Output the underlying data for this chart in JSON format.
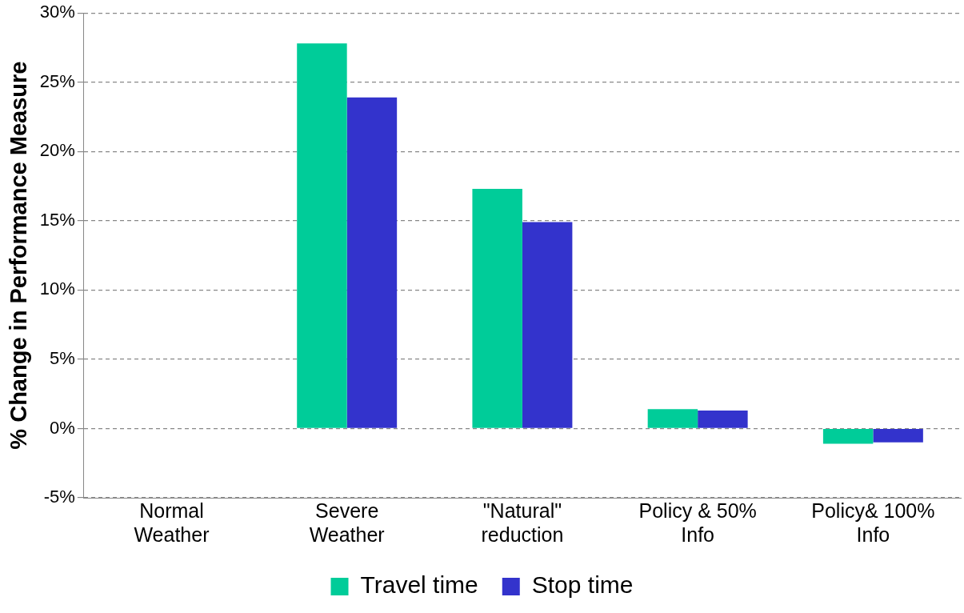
{
  "chart_data": {
    "type": "bar",
    "ylabel": "% Change in Performance Measure",
    "categories": [
      "Normal\nWeather",
      "Severe\nWeather",
      "\"Natural\"\nreduction",
      "Policy & 50%\nInfo",
      "Policy& 100%\nInfo"
    ],
    "series": [
      {
        "name": "Travel time",
        "color": "#00cc99",
        "values": [
          0,
          27.8,
          17.3,
          1.4,
          -1.1
        ]
      },
      {
        "name": "Stop time",
        "color": "#3333cc",
        "values": [
          0,
          23.9,
          14.9,
          1.3,
          -1.0
        ]
      }
    ],
    "ylim": [
      -5,
      30
    ],
    "yticks": [
      {
        "value": -5,
        "label": "-5%"
      },
      {
        "value": 0,
        "label": "0%"
      },
      {
        "value": 5,
        "label": "5%"
      },
      {
        "value": 10,
        "label": "10%"
      },
      {
        "value": 15,
        "label": "15%"
      },
      {
        "value": 20,
        "label": "20%"
      },
      {
        "value": 25,
        "label": "25%"
      },
      {
        "value": 30,
        "label": "30%"
      }
    ],
    "grid": "y",
    "legend": "bottom"
  }
}
